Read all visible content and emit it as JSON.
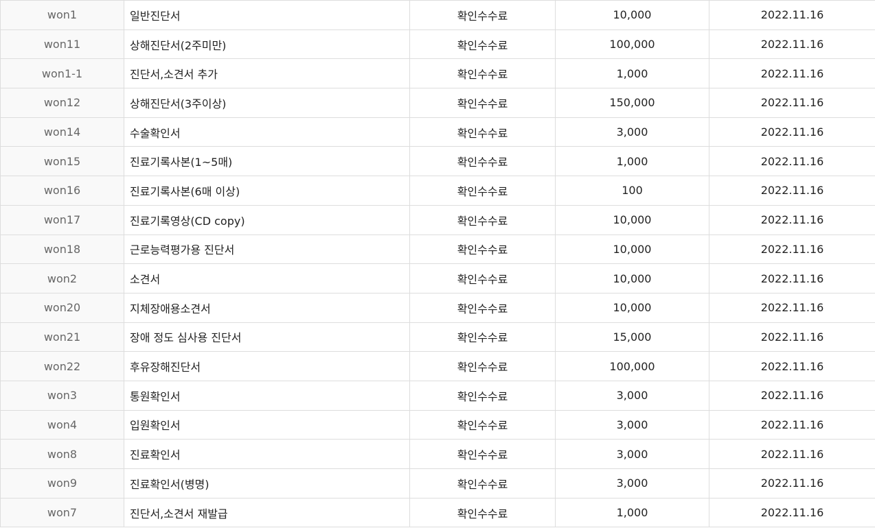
{
  "rows": [
    {
      "code": "won1",
      "name": "일반진단서",
      "type": "확인수수료",
      "amount": "10,000",
      "date": "2022.11.16"
    },
    {
      "code": "won11",
      "name": "상해진단서(2주미만)",
      "type": "확인수수료",
      "amount": "100,000",
      "date": "2022.11.16"
    },
    {
      "code": "won1-1",
      "name": "진단서,소견서 추가",
      "type": "확인수수료",
      "amount": "1,000",
      "date": "2022.11.16"
    },
    {
      "code": "won12",
      "name": "상해진단서(3주이상)",
      "type": "확인수수료",
      "amount": "150,000",
      "date": "2022.11.16"
    },
    {
      "code": "won14",
      "name": "수술확인서",
      "type": "확인수수료",
      "amount": "3,000",
      "date": "2022.11.16"
    },
    {
      "code": "won15",
      "name": "진료기록사본(1~5매)",
      "type": "확인수수료",
      "amount": "1,000",
      "date": "2022.11.16"
    },
    {
      "code": "won16",
      "name": "진료기록사본(6매 이상)",
      "type": "확인수수료",
      "amount": "100",
      "date": "2022.11.16"
    },
    {
      "code": "won17",
      "name": "진료기록영상(CD copy)",
      "type": "확인수수료",
      "amount": "10,000",
      "date": "2022.11.16"
    },
    {
      "code": "won18",
      "name": "근로능력평가용 진단서",
      "type": "확인수수료",
      "amount": "10,000",
      "date": "2022.11.16"
    },
    {
      "code": "won2",
      "name": "소견서",
      "type": "확인수수료",
      "amount": "10,000",
      "date": "2022.11.16"
    },
    {
      "code": "won20",
      "name": "지체장애용소견서",
      "type": "확인수수료",
      "amount": "10,000",
      "date": "2022.11.16"
    },
    {
      "code": "won21",
      "name": "장애 정도 심사용 진단서",
      "type": "확인수수료",
      "amount": "15,000",
      "date": "2022.11.16"
    },
    {
      "code": "won22",
      "name": "후유장해진단서",
      "type": "확인수수료",
      "amount": "100,000",
      "date": "2022.11.16"
    },
    {
      "code": "won3",
      "name": "통원확인서",
      "type": "확인수수료",
      "amount": "3,000",
      "date": "2022.11.16"
    },
    {
      "code": "won4",
      "name": "입원확인서",
      "type": "확인수수료",
      "amount": "3,000",
      "date": "2022.11.16"
    },
    {
      "code": "won8",
      "name": "진료확인서",
      "type": "확인수수료",
      "amount": "3,000",
      "date": "2022.11.16"
    },
    {
      "code": "won9",
      "name": "진료확인서(병명)",
      "type": "확인수수료",
      "amount": "3,000",
      "date": "2022.11.16"
    },
    {
      "code": "won7",
      "name": "진단서,소견서 재발급",
      "type": "확인수수료",
      "amount": "1,000",
      "date": "2022.11.16"
    }
  ]
}
